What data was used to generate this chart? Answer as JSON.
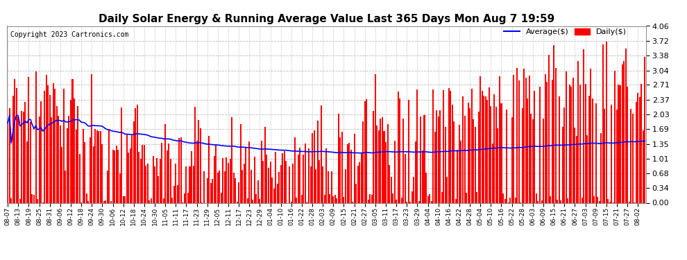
{
  "title": "Daily Solar Energy & Running Average Value Last 365 Days Mon Aug 7 19:59",
  "copyright": "Copyright 2023 Cartronics.com",
  "legend_avg": "Average($)",
  "legend_daily": "Daily($)",
  "bar_color": "#ff0000",
  "avg_line_color": "#0000ff",
  "background_color": "#ffffff",
  "plot_bg_color": "#ffffff",
  "grid_color": "#bbbbbb",
  "yticks": [
    0.0,
    0.34,
    0.68,
    1.01,
    1.35,
    1.69,
    2.03,
    2.37,
    2.71,
    3.04,
    3.38,
    3.72,
    4.06
  ],
  "ylim": [
    0.0,
    4.06
  ],
  "xtick_labels": [
    "08-07",
    "08-13",
    "08-19",
    "08-25",
    "08-31",
    "09-06",
    "09-12",
    "09-18",
    "09-24",
    "09-30",
    "10-06",
    "10-12",
    "10-18",
    "10-24",
    "10-30",
    "11-05",
    "11-11",
    "11-17",
    "11-23",
    "11-29",
    "12-05",
    "12-11",
    "12-17",
    "12-23",
    "12-29",
    "01-04",
    "01-10",
    "01-16",
    "01-22",
    "01-28",
    "02-03",
    "02-09",
    "02-15",
    "02-21",
    "02-27",
    "03-05",
    "03-11",
    "03-17",
    "03-23",
    "03-29",
    "04-04",
    "04-10",
    "04-16",
    "04-22",
    "04-28",
    "05-04",
    "05-10",
    "05-16",
    "05-22",
    "05-28",
    "06-03",
    "06-09",
    "06-15",
    "06-21",
    "06-27",
    "07-03",
    "07-09",
    "07-15",
    "07-21",
    "07-27",
    "08-02"
  ],
  "xtick_days": [
    0,
    6,
    12,
    18,
    24,
    30,
    36,
    42,
    48,
    54,
    60,
    66,
    72,
    78,
    84,
    90,
    96,
    102,
    108,
    114,
    120,
    126,
    132,
    138,
    144,
    150,
    156,
    162,
    168,
    174,
    180,
    186,
    192,
    198,
    204,
    210,
    216,
    222,
    228,
    234,
    240,
    246,
    252,
    258,
    264,
    270,
    276,
    282,
    288,
    294,
    300,
    306,
    312,
    318,
    324,
    330,
    336,
    342,
    348,
    354,
    360
  ],
  "title_fontsize": 11,
  "axis_label_fontsize": 7,
  "copyright_fontsize": 7
}
